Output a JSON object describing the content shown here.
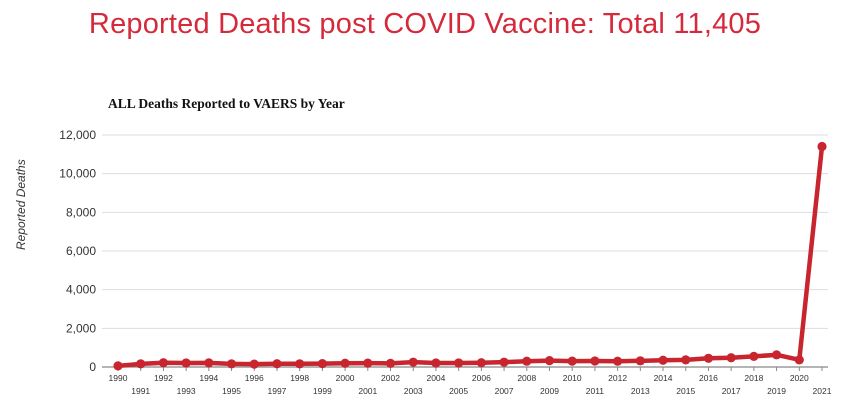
{
  "headline": "Reported Deaths post COVID Vaccine: Total 11,405",
  "chart_data": {
    "type": "line",
    "title": "ALL Deaths Reported to VAERS by Year",
    "xlabel": "",
    "ylabel": "Reported Deaths",
    "ylim": [
      0,
      12000
    ],
    "yticks": [
      0,
      2000,
      4000,
      6000,
      8000,
      10000,
      12000
    ],
    "ytick_labels": [
      "0",
      "2,000",
      "4,000",
      "6,000",
      "8,000",
      "10,000",
      "12,000"
    ],
    "grid": true,
    "line_color": "#c8252f",
    "x": [
      "1990",
      "1991",
      "1992",
      "1993",
      "1994",
      "1995",
      "1996",
      "1997",
      "1998",
      "1999",
      "2000",
      "2001",
      "2002",
      "2003",
      "2004",
      "2005",
      "2006",
      "2007",
      "2008",
      "2009",
      "2010",
      "2011",
      "2012",
      "2013",
      "2014",
      "2015",
      "2016",
      "2017",
      "2018",
      "2019",
      "2020",
      "2021"
    ],
    "series": [
      {
        "values": [
          60,
          160,
          220,
          210,
          215,
          160,
          150,
          170,
          165,
          175,
          195,
          200,
          190,
          250,
          205,
          210,
          220,
          250,
          300,
          330,
          305,
          310,
          300,
          320,
          350,
          370,
          450,
          480,
          550,
          630,
          370,
          11405
        ]
      }
    ]
  }
}
